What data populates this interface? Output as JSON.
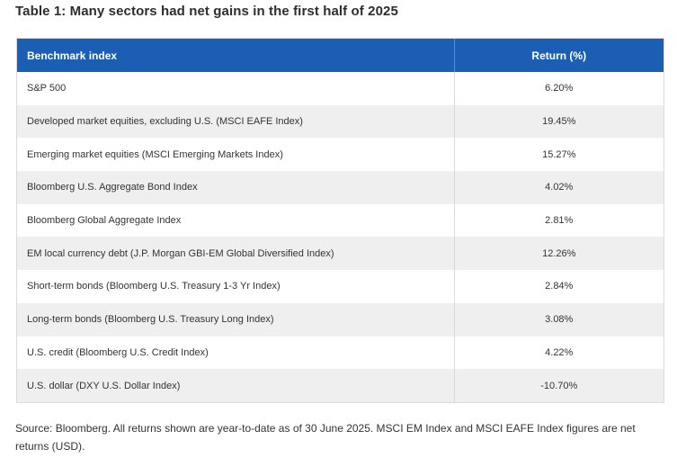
{
  "title": "Table 1: Many sectors had net gains in the first half of 2025",
  "table": {
    "headers": {
      "index": "Benchmark index",
      "return": "Return (%)"
    },
    "rows": [
      {
        "index": "S&P 500",
        "return": "6.20%"
      },
      {
        "index": "Developed market equities, excluding U.S. (MSCI EAFE Index)",
        "return": "19.45%"
      },
      {
        "index": "Emerging market equities (MSCI Emerging Markets Index)",
        "return": "15.27%"
      },
      {
        "index": "Bloomberg U.S. Aggregate Bond Index",
        "return": "4.02%"
      },
      {
        "index": "Bloomberg Global Aggregate Index",
        "return": "2.81%"
      },
      {
        "index": "EM local currency debt (J.P. Morgan GBI-EM Global Diversified Index)",
        "return": "12.26%"
      },
      {
        "index": "Short-term bonds (Bloomberg U.S. Treasury 1-3 Yr Index)",
        "return": "2.84%"
      },
      {
        "index": "Long-term bonds (Bloomberg U.S. Treasury Long Index)",
        "return": "3.08%"
      },
      {
        "index": "U.S. credit (Bloomberg U.S. Credit Index)",
        "return": "4.22%"
      },
      {
        "index": "U.S. dollar (DXY U.S. Dollar Index)",
        "return": "-10.70%"
      }
    ]
  },
  "source": "Source: Bloomberg. All returns shown are year-to-date as of 30 June 2025. MSCI EM Index and MSCI EAFE Index figures are net returns (USD).",
  "colors": {
    "header_bg": "#1a5fb4",
    "stripe": "#efefef"
  }
}
